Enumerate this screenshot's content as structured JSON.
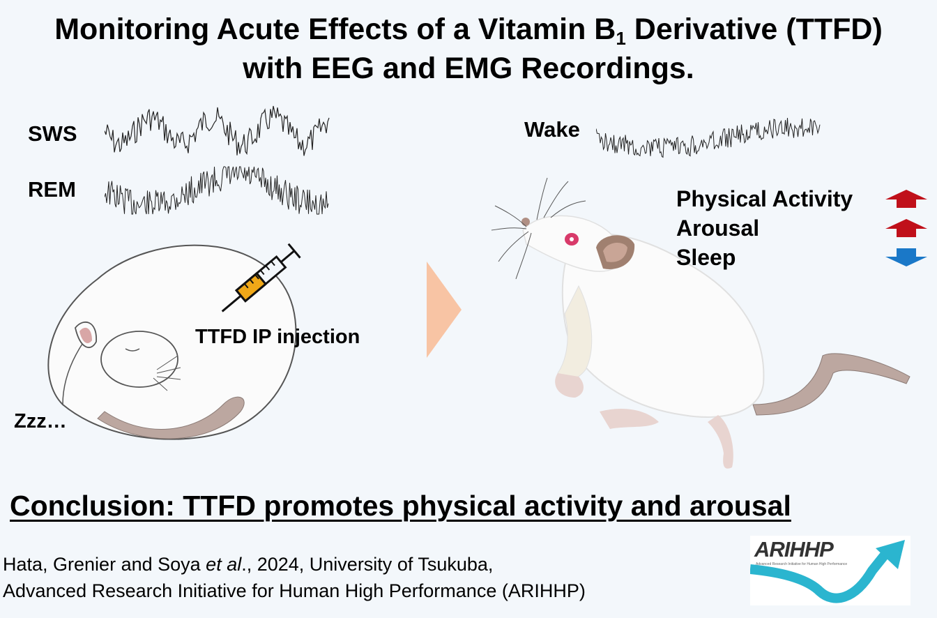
{
  "title": {
    "line1_prefix": "Monitoring Acute Effects of a Vitamin B",
    "line1_subscript": "1",
    "line1_suffix": " Derivative (TTFD)",
    "line2": "with EEG and EMG Recordings."
  },
  "left_panel": {
    "sws_label": "SWS",
    "rem_label": "REM",
    "injection_label": "TTFD IP injection",
    "sleep_sound": "Zzz…"
  },
  "right_panel": {
    "wake_label": "Wake",
    "effects": [
      {
        "label": "Physical Activity",
        "direction": "up",
        "color": "#c0101a"
      },
      {
        "label": "Arousal",
        "direction": "up",
        "color": "#c0101a"
      },
      {
        "label": "Sleep",
        "direction": "down",
        "color": "#1a78c8"
      }
    ]
  },
  "conclusion": "Conclusion: TTFD promotes physical activity and arousal",
  "citation": {
    "line1_authors": "Hata, Grenier and Soya ",
    "line1_etal": "et al",
    "line1_rest": "., 2024, University of Tsukuba,",
    "line2": "Advanced Research Initiative for Human High Performance (ARIHHP)"
  },
  "logo": {
    "text": "ARIHHP",
    "subtitle": "Advanced Research Initiative for Human High Performance",
    "color": "#2bb5cf"
  },
  "colors": {
    "arrow_transition": "#f8c4a4",
    "syringe_fluid": "#f0a818",
    "rat_body": "#fbfbfb",
    "rat_tail": "#bca7a0"
  }
}
